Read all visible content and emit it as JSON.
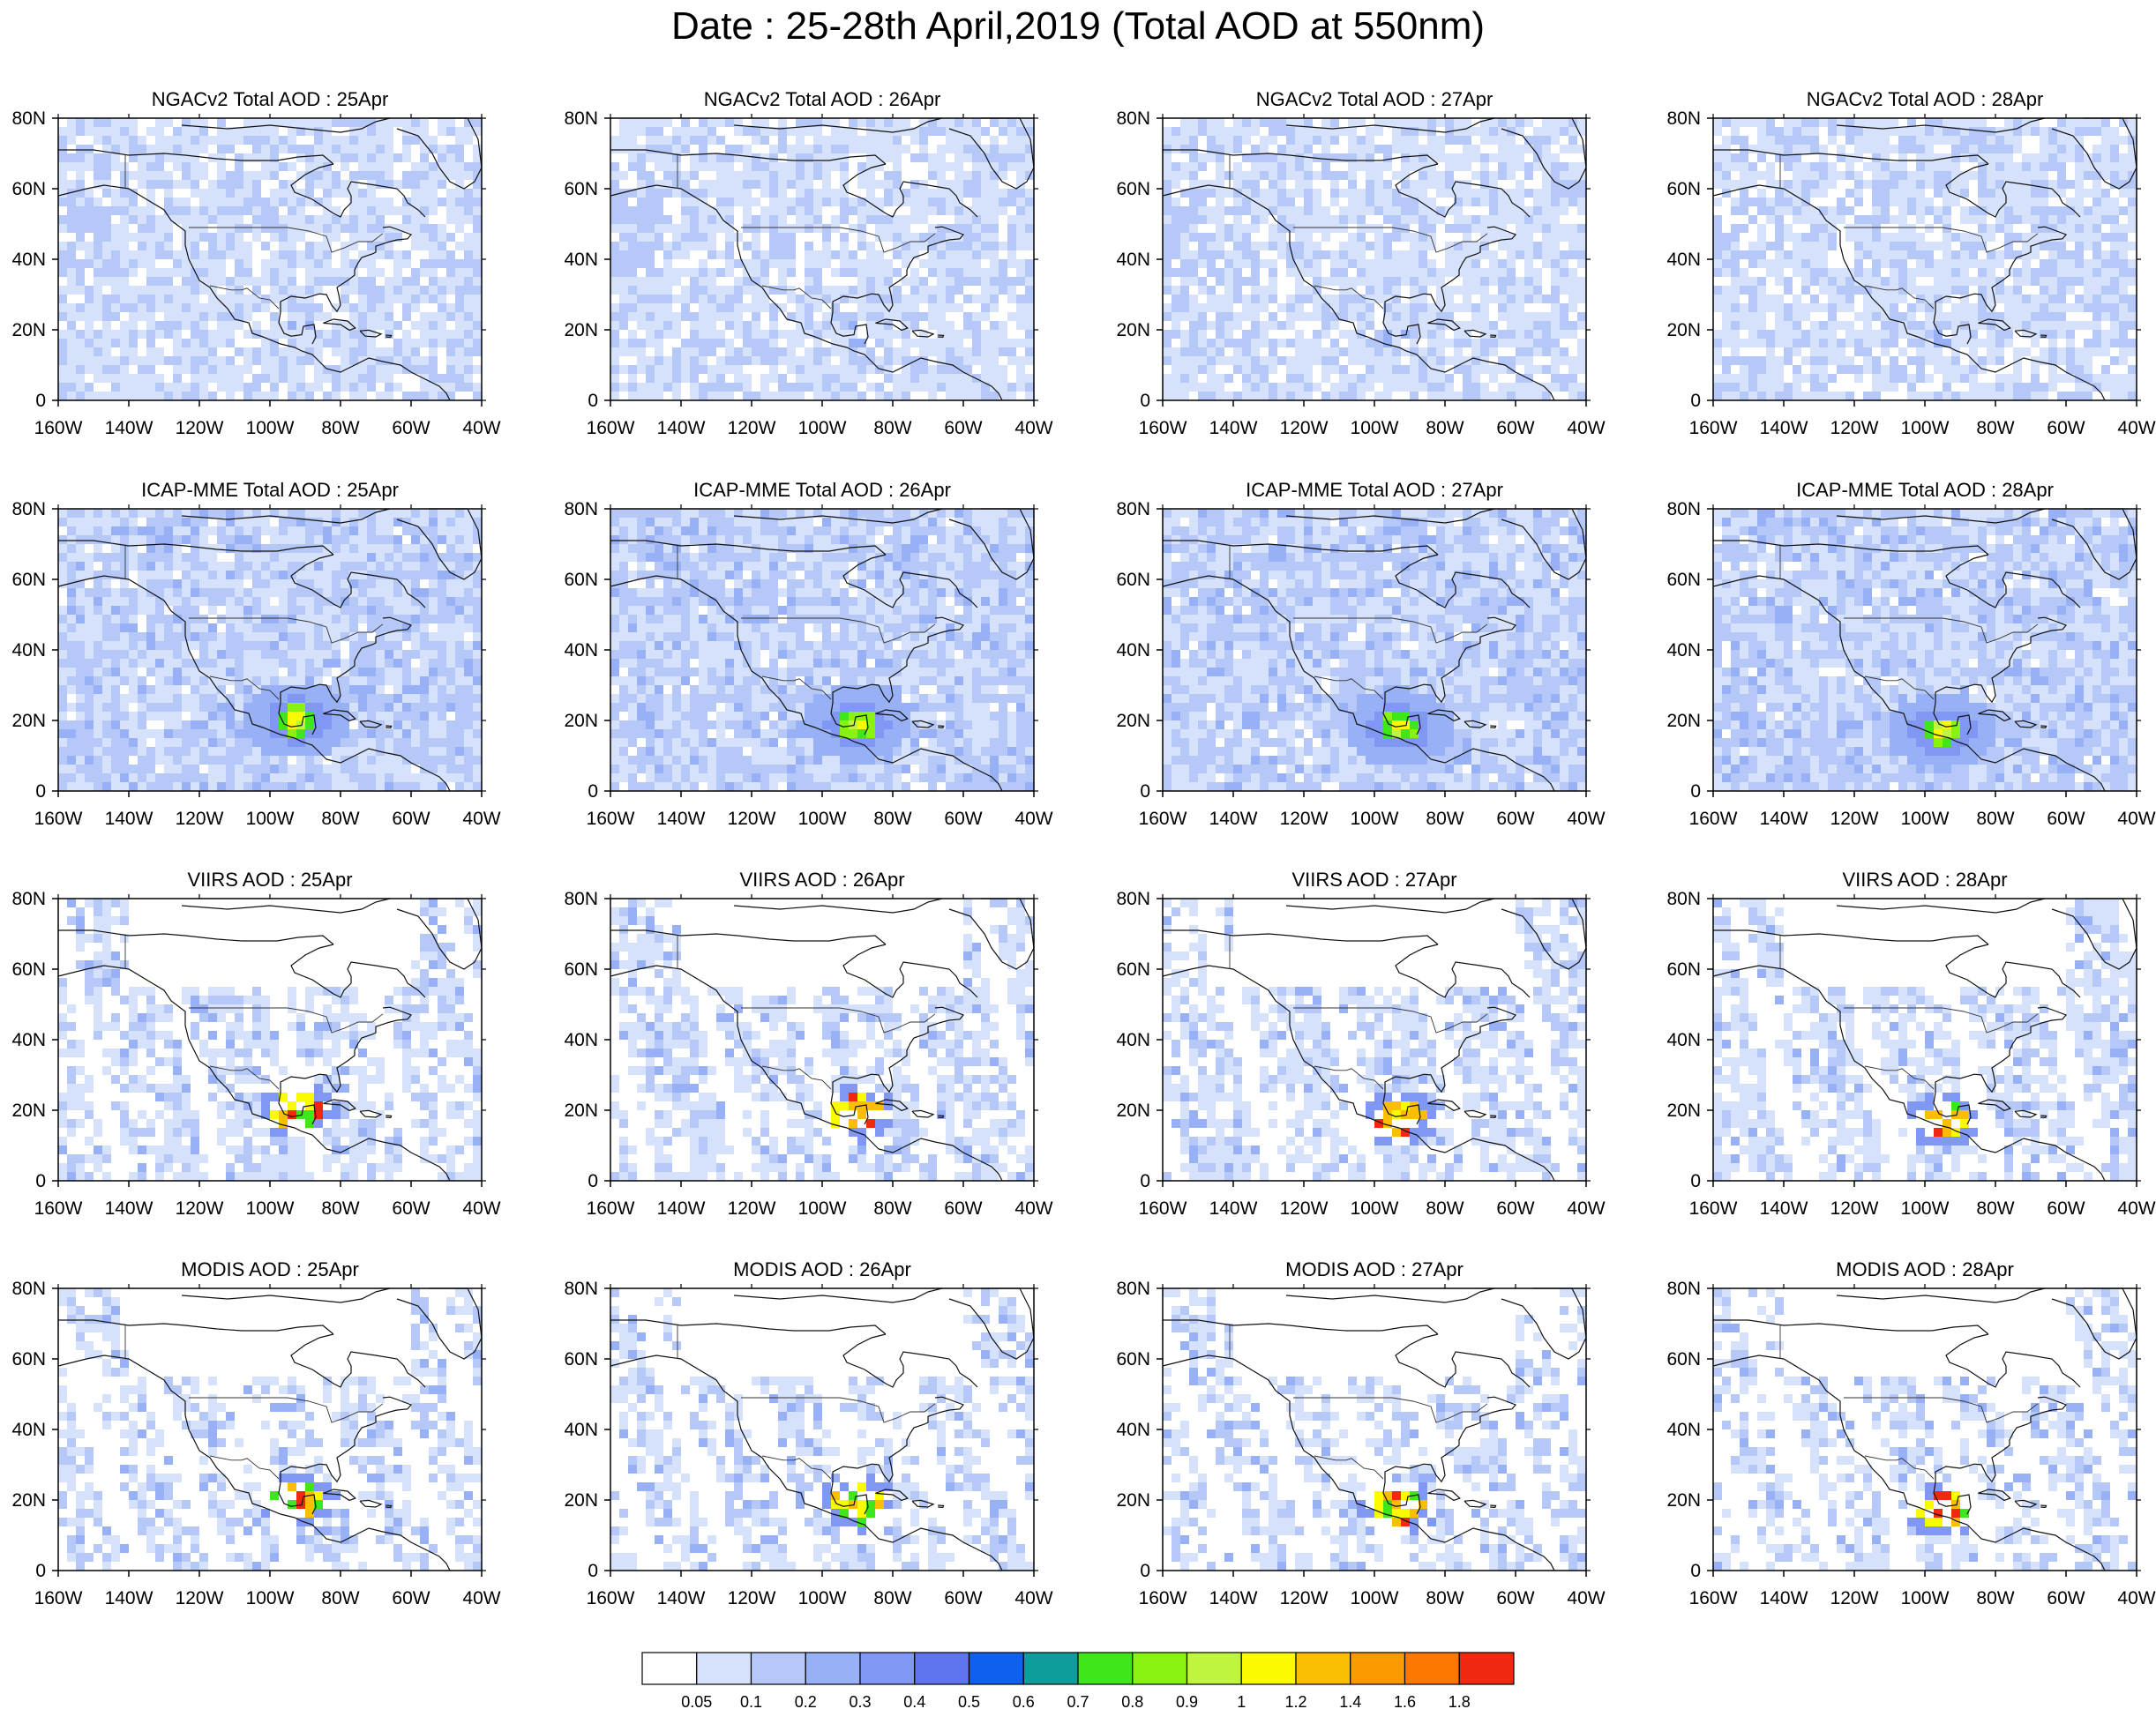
{
  "title": "Date : 25-28th April,2019 (Total AOD at 550nm)",
  "x_ticks": [
    "160W",
    "140W",
    "120W",
    "100W",
    "80W",
    "60W",
    "40W"
  ],
  "y_ticks": [
    "80N",
    "60N",
    "40N",
    "20N",
    "0"
  ],
  "panels": [
    [
      "NGACv2 Total AOD : 25Apr",
      "NGACv2 Total AOD : 26Apr",
      "NGACv2 Total AOD : 27Apr",
      "NGACv2 Total AOD : 28Apr"
    ],
    [
      "ICAP-MME Total AOD : 25Apr",
      "ICAP-MME Total AOD : 26Apr",
      "ICAP-MME Total AOD : 27Apr",
      "ICAP-MME Total AOD : 28Apr"
    ],
    [
      "VIIRS AOD : 25Apr",
      "VIIRS AOD : 26Apr",
      "VIIRS AOD : 27Apr",
      "VIIRS AOD : 28Apr"
    ],
    [
      "MODIS AOD : 25Apr",
      "MODIS AOD : 26Apr",
      "MODIS AOD : 27Apr",
      "MODIS AOD : 28Apr"
    ]
  ],
  "map_extent": {
    "lon": [
      -160,
      -40
    ],
    "lat": [
      0,
      80
    ]
  },
  "colorbar": {
    "labels": [
      "0.05",
      "0.1",
      "0.2",
      "0.3",
      "0.4",
      "0.5",
      "0.6",
      "0.7",
      "0.8",
      "0.9",
      "1",
      "1.2",
      "1.4",
      "1.6",
      "1.8"
    ],
    "colors": [
      "#ffffff",
      "#d6e2fb",
      "#b5c8f8",
      "#98b0f6",
      "#8098f4",
      "#5f74ee",
      "#1060f0",
      "#0f9c9c",
      "#3ee61a",
      "#88f210",
      "#bff53f",
      "#fbfb00",
      "#fbbe00",
      "#fb9a00",
      "#fb7800",
      "#f02810"
    ]
  }
}
